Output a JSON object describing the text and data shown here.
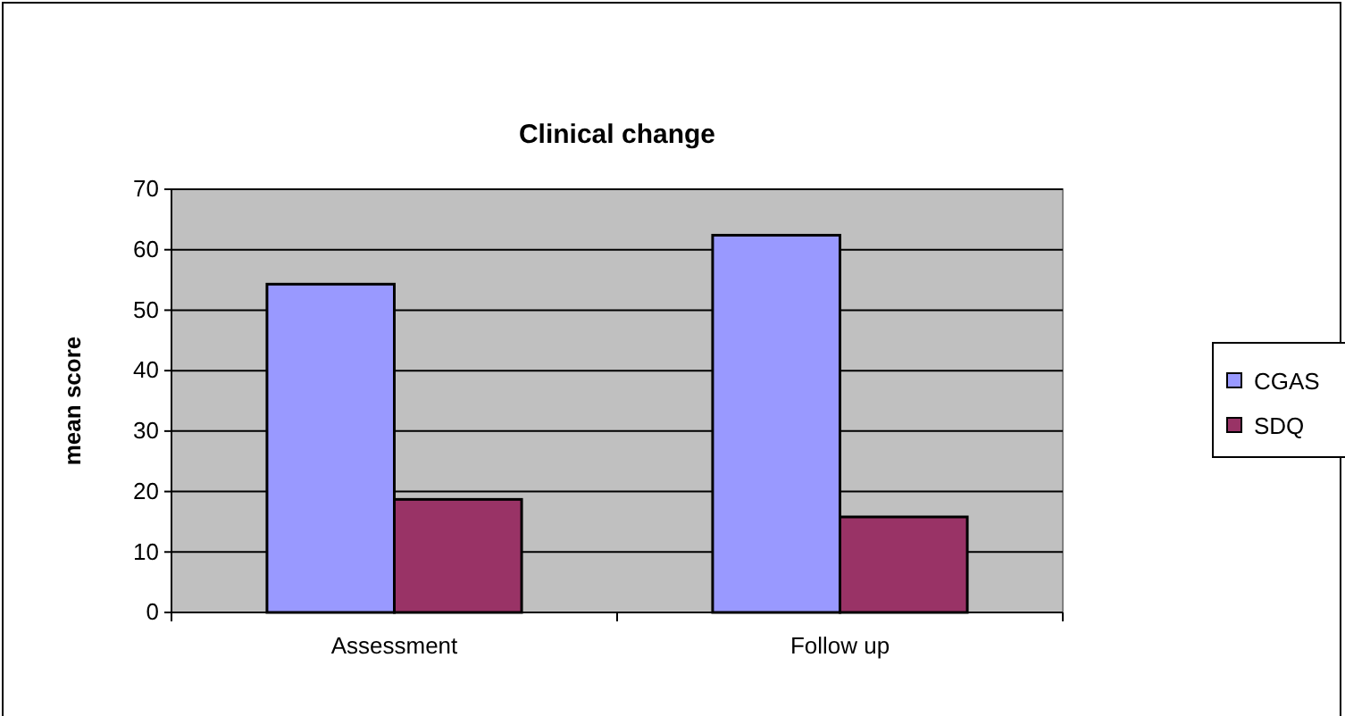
{
  "chart_data": {
    "type": "bar",
    "title": "Clinical change",
    "ylabel": "mean score",
    "categories": [
      "Assessment",
      "Follow up"
    ],
    "series": [
      {
        "name": "CGAS",
        "color": "#9999ff",
        "values": [
          54.3,
          62.4
        ]
      },
      {
        "name": "SDQ",
        "color": "#993366",
        "values": [
          18.7,
          15.8
        ]
      }
    ],
    "ylim": [
      0,
      70
    ],
    "yticks": [
      0,
      10,
      20,
      30,
      40,
      50,
      60,
      70
    ],
    "grid": "y",
    "legend": "right"
  }
}
